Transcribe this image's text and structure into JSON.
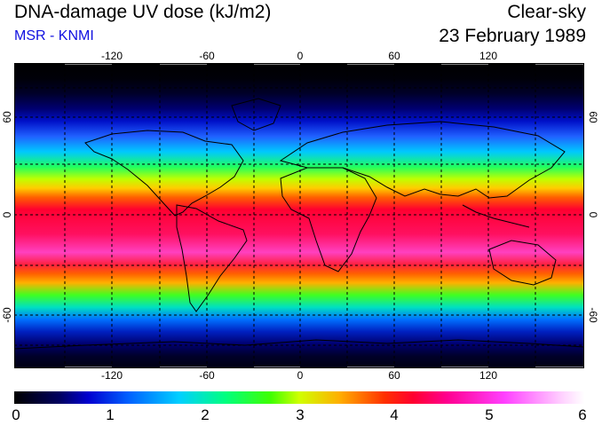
{
  "header": {
    "title": "DNA-damage UV dose (kJ/m2)",
    "subtitle": "MSR - KNMI",
    "mode": "Clear-sky",
    "date": "23 February 1989"
  },
  "map": {
    "longitude_ticks": [
      "-120",
      "-60",
      "0",
      "60",
      "120"
    ],
    "latitude_ticks_left": [
      "60",
      "0",
      "-60"
    ],
    "latitude_ticks_right": [
      "60",
      "0",
      "-60"
    ]
  },
  "colorbar": {
    "labels": [
      "0",
      "1",
      "2",
      "3",
      "4",
      "5",
      "6"
    ]
  },
  "colors": {
    "subtitle": "#1010e0",
    "graticule": "#000000"
  }
}
